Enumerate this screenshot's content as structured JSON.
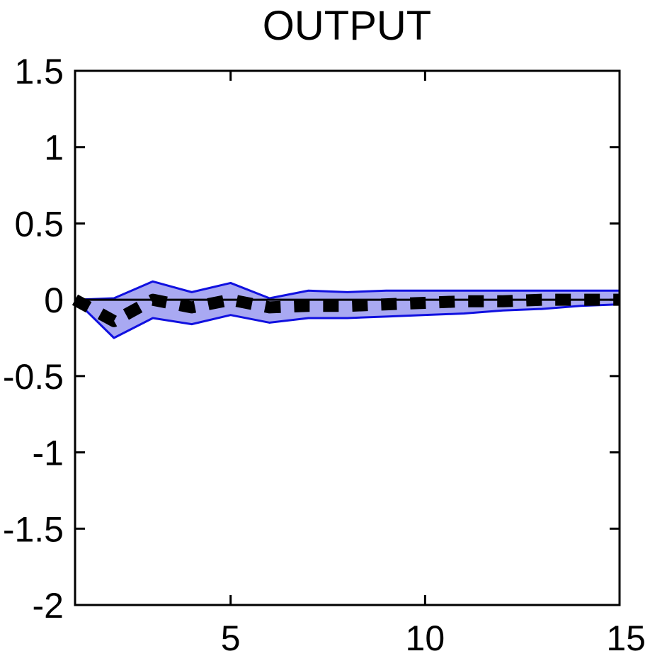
{
  "chart_data": {
    "type": "line",
    "title": "OUTPUT",
    "xlabel": "",
    "ylabel": "",
    "xlim": [
      1,
      15
    ],
    "ylim": [
      -2,
      1.5
    ],
    "x_ticks": [
      5,
      10,
      15
    ],
    "x_tick_labels": [
      "5",
      "10",
      "15"
    ],
    "y_ticks": [
      1.5,
      1,
      0.5,
      0,
      -0.5,
      -1,
      -1.5,
      -2
    ],
    "y_tick_labels": [
      "1.5",
      "1",
      "0.5",
      "0",
      "-0.5",
      "-1",
      "-1.5",
      "-2"
    ],
    "grid": false,
    "legend": "none",
    "zero_line": 0,
    "x": [
      1,
      2,
      3,
      4,
      5,
      6,
      7,
      8,
      9,
      10,
      11,
      12,
      13,
      14,
      15
    ],
    "series": [
      {
        "role": "point-estimate",
        "style": "dashed",
        "color": "#000000",
        "values": [
          0.0,
          -0.14,
          0.0,
          -0.05,
          0.0,
          -0.05,
          -0.04,
          -0.04,
          -0.03,
          -0.02,
          -0.01,
          -0.01,
          0.0,
          0.0,
          0.0
        ]
      }
    ],
    "band": {
      "role": "confidence-band",
      "fill": "#a9a9f2",
      "edge": "#1010e0",
      "upper": [
        0.0,
        0.01,
        0.12,
        0.05,
        0.11,
        0.01,
        0.06,
        0.05,
        0.06,
        0.06,
        0.06,
        0.06,
        0.06,
        0.06,
        0.06
      ],
      "lower": [
        0.0,
        -0.25,
        -0.12,
        -0.16,
        -0.1,
        -0.15,
        -0.12,
        -0.12,
        -0.11,
        -0.1,
        -0.09,
        -0.07,
        -0.06,
        -0.04,
        -0.03
      ]
    }
  }
}
